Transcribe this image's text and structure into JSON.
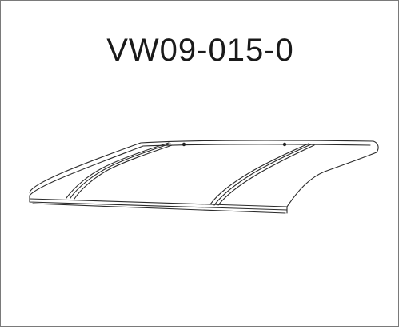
{
  "part_code": "VW09-015-0"
}
